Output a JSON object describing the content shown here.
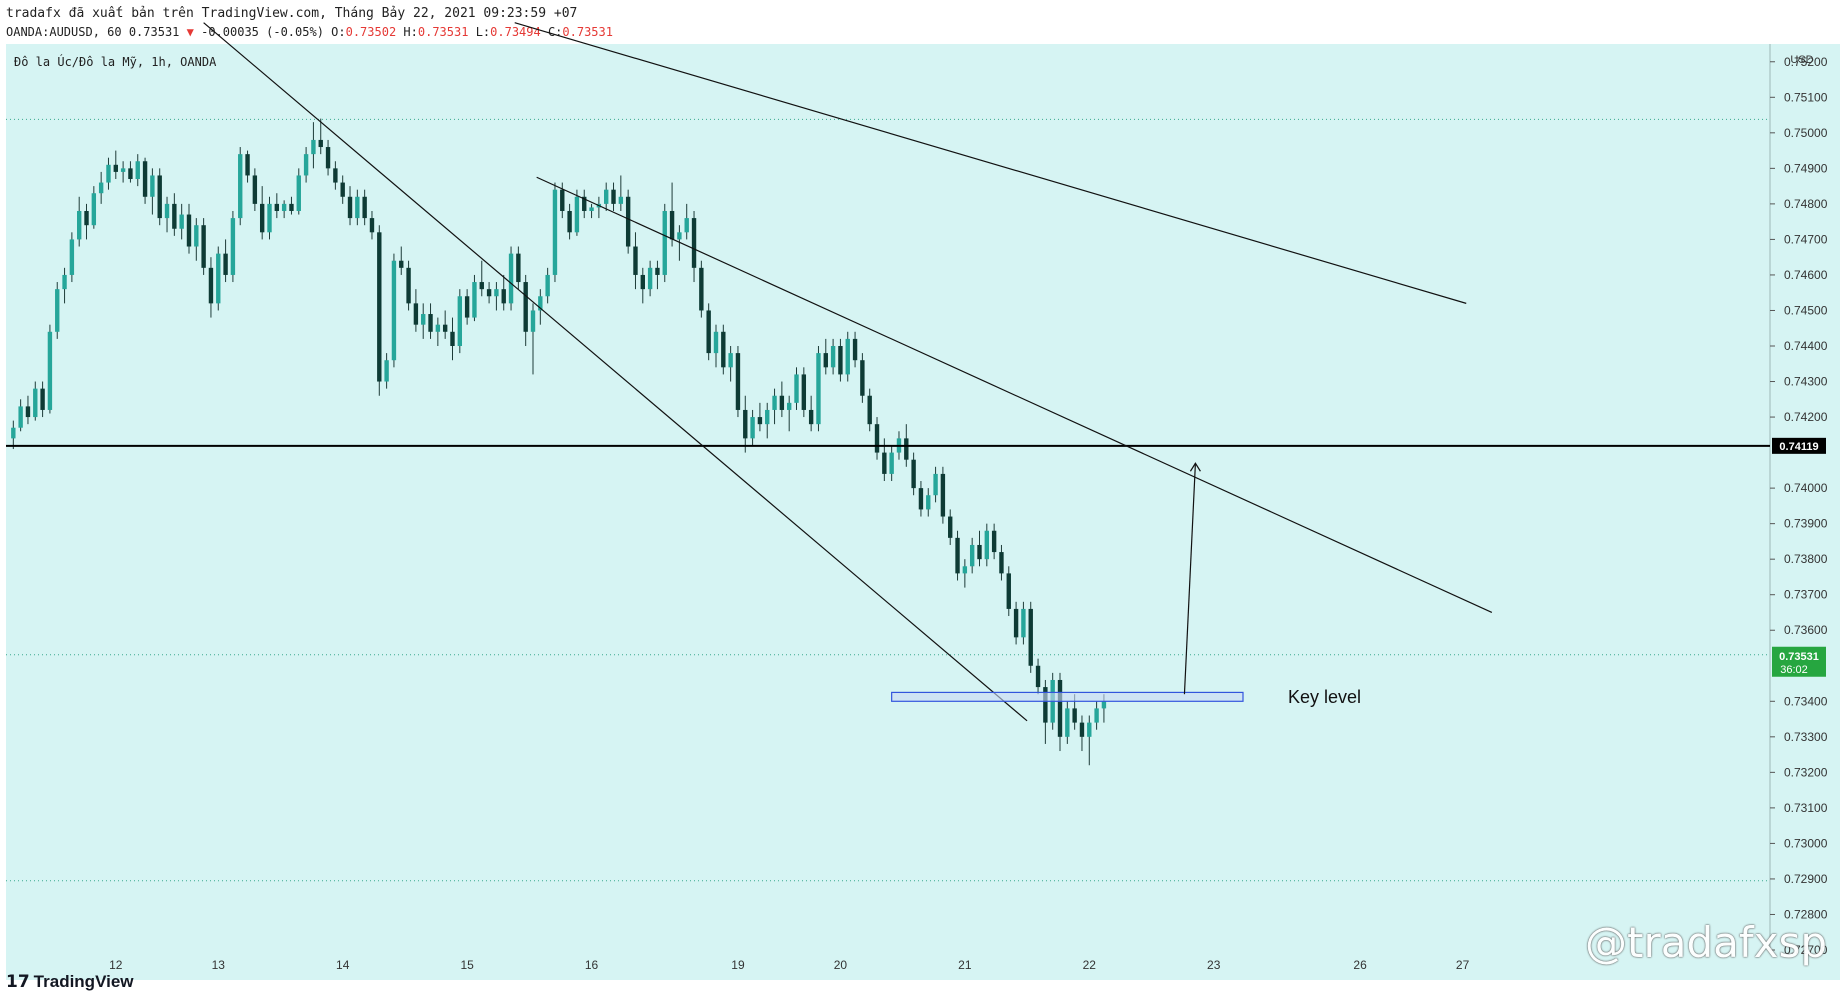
{
  "header": {
    "publish_line": "tradafx đã xuất bản trên TradingView.com, Tháng Bảy 22, 2021 09:23:59 +07",
    "symbol_line_prefix": "OANDA:AUDUSD, 60 0.73531",
    "change_arrow": "▼",
    "change_text": "-0.00035 (-0.05%)",
    "o_label": "O:",
    "o_value": "0.73502",
    "h_label": "H:",
    "h_value": "0.73531",
    "l_label": "L:",
    "l_value": "0.73494",
    "c_label": "C:",
    "c_value": "0.73531"
  },
  "footer": {
    "logo_text": "TradingView"
  },
  "watermark": {
    "text": "@tradafxsp"
  },
  "colors": {
    "background": "#d6f4f3",
    "up": "#26a69a",
    "down": "#0e3b35",
    "wick": "#1d3b38",
    "price_badge": "#26a640",
    "keylevel_fill": "#c9d8f5",
    "keylevel_stroke": "#3355dd"
  },
  "chart_data": {
    "type": "candlestick",
    "title": "Đô la Úc/Đô la Mỹ, 1h, OANDA",
    "currency": "USD",
    "ylim": [
      0.727,
      0.7525
    ],
    "y_ticks": [
      "0.75200",
      "0.75100",
      "0.75000",
      "0.74900",
      "0.74800",
      "0.74700",
      "0.74600",
      "0.74500",
      "0.74400",
      "0.74300",
      "0.74200",
      "0.74000",
      "0.73900",
      "0.73800",
      "0.73700",
      "0.73600",
      "0.73400",
      "0.73300",
      "0.73200",
      "0.73100",
      "0.73000",
      "0.72900",
      "0.72800",
      "0.72700"
    ],
    "x_ticks": [
      {
        "label": "12",
        "bar": 14
      },
      {
        "label": "13",
        "bar": 28
      },
      {
        "label": "14",
        "bar": 45
      },
      {
        "label": "15",
        "bar": 62
      },
      {
        "label": "16",
        "bar": 79
      },
      {
        "label": "19",
        "bar": 99
      },
      {
        "label": "20",
        "bar": 113
      },
      {
        "label": "21",
        "bar": 130
      },
      {
        "label": "22",
        "bar": 147
      },
      {
        "label": "23",
        "bar": 164
      },
      {
        "label": "26",
        "bar": 184
      },
      {
        "label": "27",
        "bar": 198
      }
    ],
    "x_range_bars": [
      -1,
      240
    ],
    "horizontal_line": {
      "value": 0.74119,
      "label": "0.74119"
    },
    "current_price": {
      "value": 0.73531,
      "label": "0.73531",
      "countdown": "36:02"
    },
    "dotted_levels": [
      0.75038,
      0.73531,
      0.72895
    ],
    "trendlines": [
      {
        "from": {
          "bar": 26,
          "price": 0.7531
        },
        "to": {
          "bar": 138.5,
          "price": 0.73345
        }
      },
      {
        "from": {
          "bar": 71.5,
          "price": 0.74875
        },
        "to": {
          "bar": 202,
          "price": 0.7365
        }
      },
      {
        "from": {
          "bar": 68.5,
          "price": 0.7531
        },
        "to": {
          "bar": 198.5,
          "price": 0.7452
        }
      }
    ],
    "key_level": {
      "bar_start": 120,
      "bar_end": 168,
      "price_top": 0.73425,
      "price_bottom": 0.734,
      "label": "Key level"
    },
    "projection_arrow": {
      "from": {
        "bar": 160,
        "price": 0.7342
      },
      "to": {
        "bar": 161.5,
        "price": 0.7407
      }
    },
    "candles": [
      [
        0.7414,
        0.7419,
        0.7411,
        0.7417
      ],
      [
        0.7417,
        0.7425,
        0.7416,
        0.7423
      ],
      [
        0.7423,
        0.7426,
        0.7418,
        0.742
      ],
      [
        0.742,
        0.743,
        0.7419,
        0.7428
      ],
      [
        0.7428,
        0.743,
        0.742,
        0.7422
      ],
      [
        0.7422,
        0.7446,
        0.7421,
        0.7444
      ],
      [
        0.7444,
        0.7458,
        0.7442,
        0.7456
      ],
      [
        0.7456,
        0.7462,
        0.7452,
        0.746
      ],
      [
        0.746,
        0.7472,
        0.7458,
        0.747
      ],
      [
        0.747,
        0.7482,
        0.7468,
        0.7478
      ],
      [
        0.7478,
        0.748,
        0.747,
        0.7474
      ],
      [
        0.7474,
        0.7485,
        0.7473,
        0.7483
      ],
      [
        0.7483,
        0.7489,
        0.748,
        0.7486
      ],
      [
        0.7486,
        0.7493,
        0.7484,
        0.7491
      ],
      [
        0.7491,
        0.7495,
        0.7487,
        0.7489
      ],
      [
        0.7489,
        0.7492,
        0.7486,
        0.749
      ],
      [
        0.749,
        0.7492,
        0.7486,
        0.7487
      ],
      [
        0.7487,
        0.7494,
        0.7485,
        0.7492
      ],
      [
        0.7492,
        0.7493,
        0.748,
        0.7482
      ],
      [
        0.7482,
        0.749,
        0.7477,
        0.7488
      ],
      [
        0.7488,
        0.749,
        0.7474,
        0.7476
      ],
      [
        0.7476,
        0.7482,
        0.7472,
        0.748
      ],
      [
        0.748,
        0.7483,
        0.7471,
        0.7473
      ],
      [
        0.7473,
        0.748,
        0.747,
        0.7477
      ],
      [
        0.7477,
        0.748,
        0.7466,
        0.7468
      ],
      [
        0.7468,
        0.7476,
        0.7464,
        0.7474
      ],
      [
        0.7474,
        0.7476,
        0.746,
        0.7462
      ],
      [
        0.7462,
        0.7465,
        0.7448,
        0.7452
      ],
      [
        0.7452,
        0.7468,
        0.745,
        0.7466
      ],
      [
        0.7466,
        0.747,
        0.7458,
        0.746
      ],
      [
        0.746,
        0.7478,
        0.7458,
        0.7476
      ],
      [
        0.7476,
        0.7496,
        0.7474,
        0.7494
      ],
      [
        0.7494,
        0.7495,
        0.7486,
        0.7488
      ],
      [
        0.7488,
        0.749,
        0.7478,
        0.748
      ],
      [
        0.748,
        0.7485,
        0.747,
        0.7472
      ],
      [
        0.7472,
        0.7482,
        0.747,
        0.748
      ],
      [
        0.748,
        0.7483,
        0.7476,
        0.7478
      ],
      [
        0.7478,
        0.7481,
        0.7476,
        0.748
      ],
      [
        0.748,
        0.7482,
        0.7477,
        0.7478
      ],
      [
        0.7478,
        0.749,
        0.7477,
        0.7488
      ],
      [
        0.7488,
        0.7496,
        0.7486,
        0.7494
      ],
      [
        0.7494,
        0.7503,
        0.749,
        0.7498
      ],
      [
        0.7498,
        0.7504,
        0.7494,
        0.7496
      ],
      [
        0.7496,
        0.7498,
        0.7488,
        0.749
      ],
      [
        0.749,
        0.7492,
        0.7484,
        0.7486
      ],
      [
        0.7486,
        0.7488,
        0.748,
        0.7482
      ],
      [
        0.7482,
        0.7485,
        0.7474,
        0.7476
      ],
      [
        0.7476,
        0.7484,
        0.7474,
        0.7482
      ],
      [
        0.7482,
        0.7484,
        0.7474,
        0.7476
      ],
      [
        0.7476,
        0.7478,
        0.747,
        0.7472
      ],
      [
        0.7472,
        0.7474,
        0.7426,
        0.743
      ],
      [
        0.743,
        0.7438,
        0.7428,
        0.7436
      ],
      [
        0.7436,
        0.7466,
        0.7434,
        0.7464
      ],
      [
        0.7464,
        0.7468,
        0.746,
        0.7462
      ],
      [
        0.7462,
        0.7464,
        0.745,
        0.7452
      ],
      [
        0.7452,
        0.7456,
        0.7444,
        0.7446
      ],
      [
        0.7446,
        0.7452,
        0.7442,
        0.7449
      ],
      [
        0.7449,
        0.7452,
        0.7442,
        0.7444
      ],
      [
        0.7444,
        0.7448,
        0.744,
        0.7446
      ],
      [
        0.7446,
        0.745,
        0.7442,
        0.7444
      ],
      [
        0.7444,
        0.7448,
        0.7436,
        0.744
      ],
      [
        0.744,
        0.7456,
        0.7438,
        0.7454
      ],
      [
        0.7454,
        0.7456,
        0.7446,
        0.7448
      ],
      [
        0.7448,
        0.746,
        0.7447,
        0.7458
      ],
      [
        0.7458,
        0.7464,
        0.7454,
        0.7456
      ],
      [
        0.7456,
        0.7458,
        0.7452,
        0.7454
      ],
      [
        0.7454,
        0.7458,
        0.745,
        0.7456
      ],
      [
        0.7456,
        0.746,
        0.745,
        0.7452
      ],
      [
        0.7452,
        0.7468,
        0.745,
        0.7466
      ],
      [
        0.7466,
        0.7468,
        0.7456,
        0.7458
      ],
      [
        0.7458,
        0.746,
        0.744,
        0.7444
      ],
      [
        0.7444,
        0.7452,
        0.7432,
        0.745
      ],
      [
        0.745,
        0.7456,
        0.7446,
        0.7454
      ],
      [
        0.7454,
        0.7462,
        0.7452,
        0.746
      ],
      [
        0.746,
        0.7486,
        0.7458,
        0.7484
      ],
      [
        0.7484,
        0.7486,
        0.7476,
        0.7478
      ],
      [
        0.7478,
        0.748,
        0.747,
        0.7472
      ],
      [
        0.7472,
        0.7484,
        0.7471,
        0.7482
      ],
      [
        0.7482,
        0.7484,
        0.7476,
        0.7478
      ],
      [
        0.7478,
        0.748,
        0.7476,
        0.7479
      ],
      [
        0.7479,
        0.7482,
        0.7476,
        0.748
      ],
      [
        0.748,
        0.7486,
        0.7478,
        0.7484
      ],
      [
        0.7484,
        0.7486,
        0.7478,
        0.748
      ],
      [
        0.748,
        0.7488,
        0.7478,
        0.7482
      ],
      [
        0.7482,
        0.7484,
        0.7466,
        0.7468
      ],
      [
        0.7468,
        0.7472,
        0.7456,
        0.746
      ],
      [
        0.746,
        0.7462,
        0.7452,
        0.7456
      ],
      [
        0.7456,
        0.7464,
        0.7454,
        0.7462
      ],
      [
        0.7462,
        0.7464,
        0.7456,
        0.746
      ],
      [
        0.746,
        0.748,
        0.7458,
        0.7478
      ],
      [
        0.7478,
        0.7486,
        0.7468,
        0.747
      ],
      [
        0.747,
        0.7474,
        0.7464,
        0.7472
      ],
      [
        0.7472,
        0.748,
        0.747,
        0.7476
      ],
      [
        0.7476,
        0.7478,
        0.7458,
        0.7462
      ],
      [
        0.7462,
        0.7464,
        0.7448,
        0.745
      ],
      [
        0.745,
        0.7452,
        0.7436,
        0.7438
      ],
      [
        0.7438,
        0.7446,
        0.7434,
        0.7444
      ],
      [
        0.7444,
        0.7446,
        0.7432,
        0.7434
      ],
      [
        0.7434,
        0.744,
        0.743,
        0.7438
      ],
      [
        0.7438,
        0.744,
        0.742,
        0.7422
      ],
      [
        0.7422,
        0.7426,
        0.741,
        0.7414
      ],
      [
        0.7414,
        0.7422,
        0.7412,
        0.742
      ],
      [
        0.742,
        0.7424,
        0.7416,
        0.7418
      ],
      [
        0.7418,
        0.7424,
        0.7414,
        0.7422
      ],
      [
        0.7422,
        0.7428,
        0.7418,
        0.7426
      ],
      [
        0.7426,
        0.743,
        0.742,
        0.7422
      ],
      [
        0.7422,
        0.7426,
        0.7416,
        0.7424
      ],
      [
        0.7424,
        0.7434,
        0.7422,
        0.7432
      ],
      [
        0.7432,
        0.7434,
        0.742,
        0.7422
      ],
      [
        0.7422,
        0.7426,
        0.7416,
        0.7418
      ],
      [
        0.7418,
        0.744,
        0.7416,
        0.7438
      ],
      [
        0.7438,
        0.7442,
        0.7432,
        0.7434
      ],
      [
        0.7434,
        0.7442,
        0.7432,
        0.744
      ],
      [
        0.744,
        0.7442,
        0.743,
        0.7432
      ],
      [
        0.7432,
        0.7444,
        0.743,
        0.7442
      ],
      [
        0.7442,
        0.7444,
        0.7434,
        0.7436
      ],
      [
        0.7436,
        0.7438,
        0.7424,
        0.7426
      ],
      [
        0.7426,
        0.7428,
        0.7416,
        0.7418
      ],
      [
        0.7418,
        0.742,
        0.7408,
        0.741
      ],
      [
        0.741,
        0.7414,
        0.7402,
        0.7404
      ],
      [
        0.7404,
        0.7412,
        0.7402,
        0.741
      ],
      [
        0.741,
        0.7416,
        0.7408,
        0.7414
      ],
      [
        0.7414,
        0.7418,
        0.7406,
        0.7408
      ],
      [
        0.7408,
        0.741,
        0.7398,
        0.74
      ],
      [
        0.74,
        0.7402,
        0.7392,
        0.7394
      ],
      [
        0.7394,
        0.74,
        0.7392,
        0.7398
      ],
      [
        0.7398,
        0.7406,
        0.7396,
        0.7404
      ],
      [
        0.7404,
        0.7406,
        0.739,
        0.7392
      ],
      [
        0.7392,
        0.7394,
        0.7384,
        0.7386
      ],
      [
        0.7386,
        0.7388,
        0.7374,
        0.7376
      ],
      [
        0.7376,
        0.738,
        0.7372,
        0.7378
      ],
      [
        0.7378,
        0.7386,
        0.7376,
        0.7384
      ],
      [
        0.7384,
        0.7388,
        0.7378,
        0.738
      ],
      [
        0.738,
        0.739,
        0.7378,
        0.7388
      ],
      [
        0.7388,
        0.739,
        0.738,
        0.7382
      ],
      [
        0.7382,
        0.7384,
        0.7374,
        0.7376
      ],
      [
        0.7376,
        0.7378,
        0.7364,
        0.7366
      ],
      [
        0.7366,
        0.7368,
        0.7356,
        0.7358
      ],
      [
        0.7358,
        0.7368,
        0.7356,
        0.7366
      ],
      [
        0.7366,
        0.7368,
        0.7348,
        0.735
      ],
      [
        0.735,
        0.7352,
        0.7342,
        0.7344
      ],
      [
        0.7344,
        0.7346,
        0.7328,
        0.7334
      ],
      [
        0.7334,
        0.7348,
        0.7332,
        0.7346
      ],
      [
        0.7346,
        0.7348,
        0.7326,
        0.733
      ],
      [
        0.733,
        0.734,
        0.7328,
        0.7338
      ],
      [
        0.7338,
        0.7342,
        0.7332,
        0.7334
      ],
      [
        0.7334,
        0.7336,
        0.7326,
        0.733
      ],
      [
        0.733,
        0.7336,
        0.7322,
        0.7334
      ],
      [
        0.7334,
        0.734,
        0.7332,
        0.7338
      ],
      [
        0.7338,
        0.7342,
        0.7334,
        0.734
      ]
    ]
  }
}
